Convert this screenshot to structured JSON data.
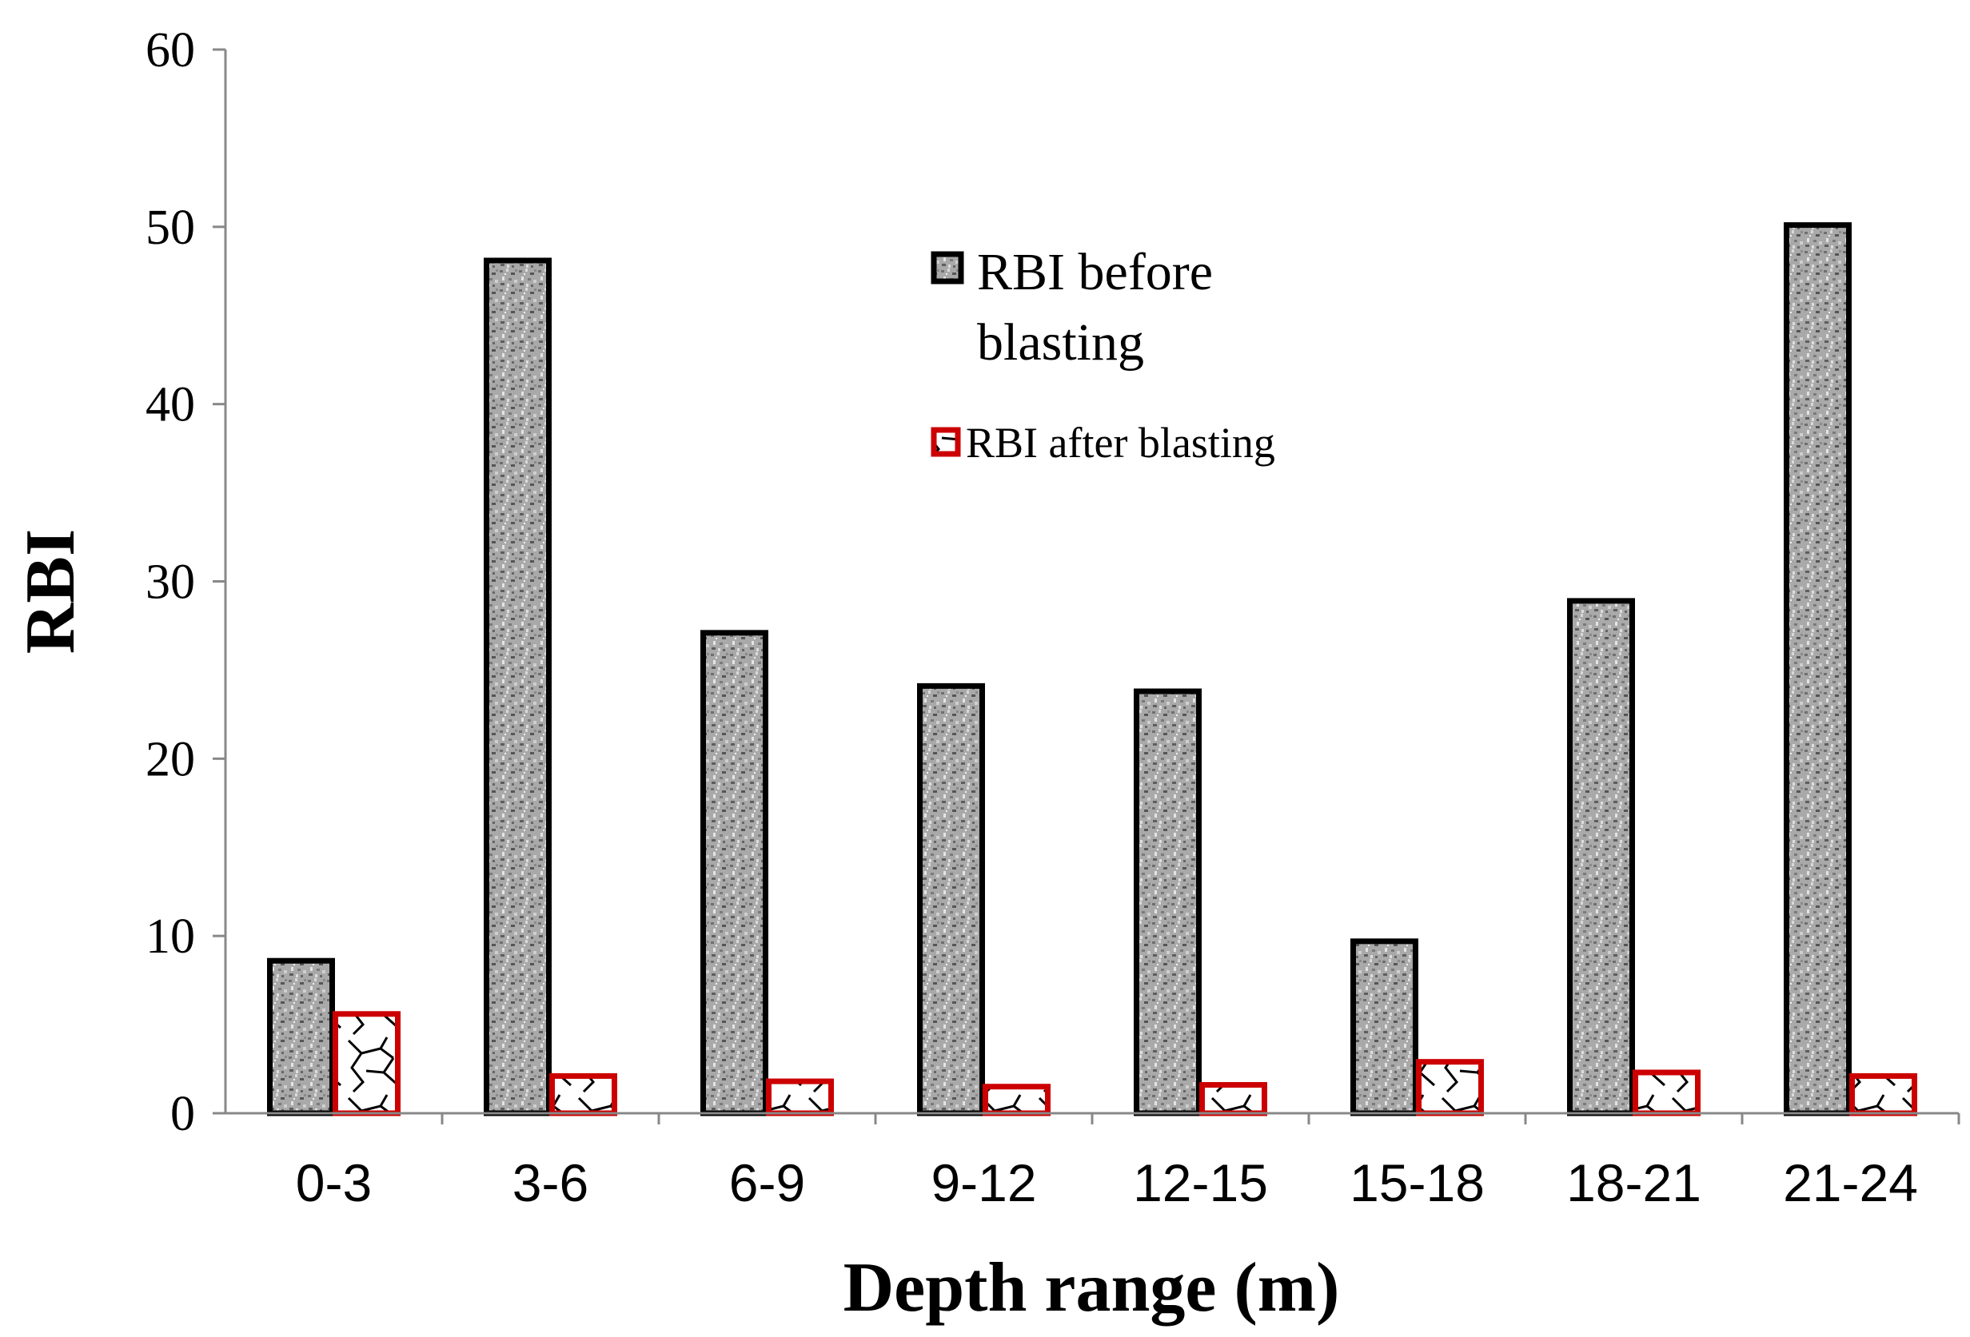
{
  "chart_data": {
    "type": "bar",
    "title": "",
    "xlabel": "Depth range (m)",
    "ylabel": "RBI",
    "ylim": [
      0,
      60
    ],
    "yticks": [
      0,
      10,
      20,
      30,
      40,
      50,
      60
    ],
    "yticklabels": [
      "0",
      "10",
      "20",
      "30",
      "40",
      "50",
      "60"
    ],
    "grid": false,
    "legend_position": "top-center",
    "categories": [
      "0-3",
      "3-6",
      "6-9",
      "9-12",
      "12-15",
      "15-18",
      "18-21",
      "21-24"
    ],
    "series": [
      {
        "name": "RBI before blasting",
        "legend_lines": [
          "RBI before",
          "blasting"
        ],
        "values": [
          8.6,
          48.1,
          27.1,
          24.1,
          23.8,
          9.7,
          28.9,
          50.1
        ],
        "fill": "#a8a8a8",
        "stroke": "#000000"
      },
      {
        "name": "RBI after blasting",
        "legend_lines": [
          "RBI after blasting"
        ],
        "values": [
          5.6,
          2.1,
          1.8,
          1.5,
          1.6,
          2.9,
          2.3,
          2.1
        ],
        "fill": "#ffffff",
        "stroke": "#cc0000"
      }
    ]
  }
}
